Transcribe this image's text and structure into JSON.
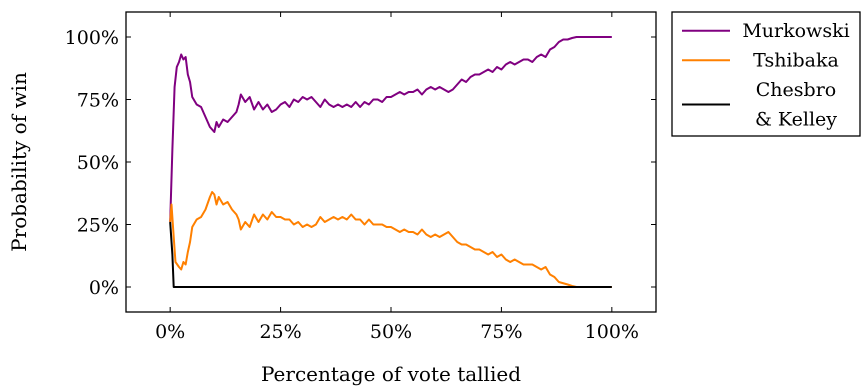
{
  "chart_data": {
    "type": "line",
    "title": "",
    "xlabel": "Percentage of vote tallied",
    "ylabel": "Probability of win",
    "xlim": [
      -10,
      110
    ],
    "ylim": [
      -10,
      110
    ],
    "xticks": [
      0,
      25,
      50,
      75,
      100
    ],
    "yticks": [
      0,
      25,
      50,
      75,
      100
    ],
    "xtick_labels": [
      "0%",
      "25%",
      "50%",
      "75%",
      "100%"
    ],
    "ytick_labels": [
      "0%",
      "25%",
      "50%",
      "75%",
      "100%"
    ],
    "grid": false,
    "legend_position": "outside-right-top",
    "colors": {
      "Murkowski": "#800080",
      "Tshibaka": "#ff8000",
      "Chesbro & Kelley": "#000000"
    },
    "series": [
      {
        "name": "Murkowski",
        "legend_lines": [
          "Murkowski"
        ],
        "points": [
          [
            0,
            26
          ],
          [
            0.5,
            55
          ],
          [
            1,
            80
          ],
          [
            1.5,
            88
          ],
          [
            2,
            90
          ],
          [
            2.5,
            93
          ],
          [
            3,
            91
          ],
          [
            3.5,
            92
          ],
          [
            4,
            85
          ],
          [
            4.5,
            82
          ],
          [
            5,
            76
          ],
          [
            6,
            73
          ],
          [
            7,
            72
          ],
          [
            8,
            68
          ],
          [
            9,
            64
          ],
          [
            10,
            62
          ],
          [
            10.5,
            66
          ],
          [
            11,
            64
          ],
          [
            12,
            67
          ],
          [
            13,
            66
          ],
          [
            14,
            68
          ],
          [
            15,
            70
          ],
          [
            15.5,
            73
          ],
          [
            16,
            77
          ],
          [
            17,
            74
          ],
          [
            18,
            76
          ],
          [
            19,
            71
          ],
          [
            20,
            74
          ],
          [
            21,
            71
          ],
          [
            22,
            73
          ],
          [
            23,
            70
          ],
          [
            24,
            71
          ],
          [
            25,
            73
          ],
          [
            26,
            74
          ],
          [
            27,
            72
          ],
          [
            28,
            75
          ],
          [
            29,
            74
          ],
          [
            30,
            76
          ],
          [
            31,
            75
          ],
          [
            32,
            76
          ],
          [
            33,
            74
          ],
          [
            34,
            72
          ],
          [
            35,
            75
          ],
          [
            36,
            73
          ],
          [
            37,
            72
          ],
          [
            38,
            73
          ],
          [
            39,
            72
          ],
          [
            40,
            73
          ],
          [
            41,
            72
          ],
          [
            42,
            74
          ],
          [
            43,
            72
          ],
          [
            44,
            74
          ],
          [
            45,
            73
          ],
          [
            46,
            75
          ],
          [
            47,
            75
          ],
          [
            48,
            74
          ],
          [
            49,
            76
          ],
          [
            50,
            76
          ],
          [
            51,
            77
          ],
          [
            52,
            78
          ],
          [
            53,
            77
          ],
          [
            54,
            78
          ],
          [
            55,
            78
          ],
          [
            56,
            79
          ],
          [
            57,
            77
          ],
          [
            58,
            79
          ],
          [
            59,
            80
          ],
          [
            60,
            79
          ],
          [
            61,
            80
          ],
          [
            62,
            79
          ],
          [
            63,
            78
          ],
          [
            64,
            79
          ],
          [
            65,
            81
          ],
          [
            66,
            83
          ],
          [
            67,
            82
          ],
          [
            68,
            84
          ],
          [
            69,
            85
          ],
          [
            70,
            85
          ],
          [
            71,
            86
          ],
          [
            72,
            87
          ],
          [
            73,
            86
          ],
          [
            74,
            88
          ],
          [
            75,
            87
          ],
          [
            76,
            89
          ],
          [
            77,
            90
          ],
          [
            78,
            89
          ],
          [
            79,
            90
          ],
          [
            80,
            91
          ],
          [
            81,
            91
          ],
          [
            82,
            90
          ],
          [
            83,
            92
          ],
          [
            84,
            93
          ],
          [
            85,
            92
          ],
          [
            86,
            95
          ],
          [
            87,
            96
          ],
          [
            88,
            98
          ],
          [
            89,
            99
          ],
          [
            90,
            99
          ],
          [
            91,
            99.6
          ],
          [
            92,
            100
          ],
          [
            94,
            100
          ],
          [
            96,
            100
          ],
          [
            98,
            100
          ],
          [
            100,
            100
          ]
        ]
      },
      {
        "name": "Tshibaka",
        "legend_lines": [
          "Tshibaka"
        ],
        "points": [
          [
            0,
            26
          ],
          [
            0.3,
            33
          ],
          [
            0.8,
            20
          ],
          [
            1.2,
            10
          ],
          [
            2,
            8
          ],
          [
            2.5,
            7
          ],
          [
            3,
            10
          ],
          [
            3.5,
            9
          ],
          [
            4,
            14
          ],
          [
            4.5,
            18
          ],
          [
            5,
            24
          ],
          [
            6,
            27
          ],
          [
            7,
            28
          ],
          [
            8,
            31
          ],
          [
            9,
            36
          ],
          [
            9.5,
            38
          ],
          [
            10,
            37
          ],
          [
            10.5,
            33
          ],
          [
            11,
            36
          ],
          [
            12,
            33
          ],
          [
            13,
            34
          ],
          [
            14,
            31
          ],
          [
            15,
            29
          ],
          [
            15.5,
            27
          ],
          [
            16,
            23
          ],
          [
            17,
            26
          ],
          [
            18,
            24
          ],
          [
            19,
            29
          ],
          [
            20,
            26
          ],
          [
            21,
            29
          ],
          [
            22,
            27
          ],
          [
            23,
            30
          ],
          [
            24,
            28
          ],
          [
            25,
            28
          ],
          [
            26,
            27
          ],
          [
            27,
            27
          ],
          [
            28,
            25
          ],
          [
            29,
            26
          ],
          [
            30,
            24
          ],
          [
            31,
            25
          ],
          [
            32,
            24
          ],
          [
            33,
            25
          ],
          [
            34,
            28
          ],
          [
            35,
            26
          ],
          [
            36,
            27
          ],
          [
            37,
            28
          ],
          [
            38,
            27
          ],
          [
            39,
            28
          ],
          [
            40,
            27
          ],
          [
            41,
            29
          ],
          [
            42,
            27
          ],
          [
            43,
            27
          ],
          [
            44,
            25
          ],
          [
            45,
            27
          ],
          [
            46,
            25
          ],
          [
            47,
            25
          ],
          [
            48,
            25
          ],
          [
            49,
            24
          ],
          [
            50,
            24
          ],
          [
            51,
            23
          ],
          [
            52,
            22
          ],
          [
            53,
            23
          ],
          [
            54,
            22
          ],
          [
            55,
            22
          ],
          [
            56,
            21
          ],
          [
            57,
            23
          ],
          [
            58,
            21
          ],
          [
            59,
            20
          ],
          [
            60,
            21
          ],
          [
            61,
            20
          ],
          [
            62,
            21
          ],
          [
            63,
            22
          ],
          [
            64,
            20
          ],
          [
            65,
            18
          ],
          [
            66,
            17
          ],
          [
            67,
            17
          ],
          [
            68,
            16
          ],
          [
            69,
            15
          ],
          [
            70,
            15
          ],
          [
            71,
            14
          ],
          [
            72,
            13
          ],
          [
            73,
            14
          ],
          [
            74,
            12
          ],
          [
            75,
            13
          ],
          [
            76,
            11
          ],
          [
            77,
            10
          ],
          [
            78,
            11
          ],
          [
            79,
            10
          ],
          [
            80,
            9
          ],
          [
            81,
            9
          ],
          [
            82,
            9
          ],
          [
            83,
            8
          ],
          [
            84,
            7
          ],
          [
            85,
            8
          ],
          [
            86,
            5
          ],
          [
            87,
            4
          ],
          [
            88,
            2
          ],
          [
            89,
            1.5
          ],
          [
            90,
            1
          ],
          [
            91,
            0.4
          ],
          [
            92,
            0
          ],
          [
            94,
            0
          ],
          [
            96,
            0
          ],
          [
            98,
            0
          ],
          [
            100,
            0
          ]
        ]
      },
      {
        "name": "Chesbro & Kelley",
        "legend_lines": [
          "Chesbro",
          "& Kelley"
        ],
        "points": [
          [
            0,
            26
          ],
          [
            0.5,
            13
          ],
          [
            0.8,
            0
          ],
          [
            2,
            0
          ],
          [
            10,
            0
          ],
          [
            25,
            0
          ],
          [
            50,
            0
          ],
          [
            75,
            0
          ],
          [
            100,
            0
          ]
        ]
      }
    ]
  }
}
